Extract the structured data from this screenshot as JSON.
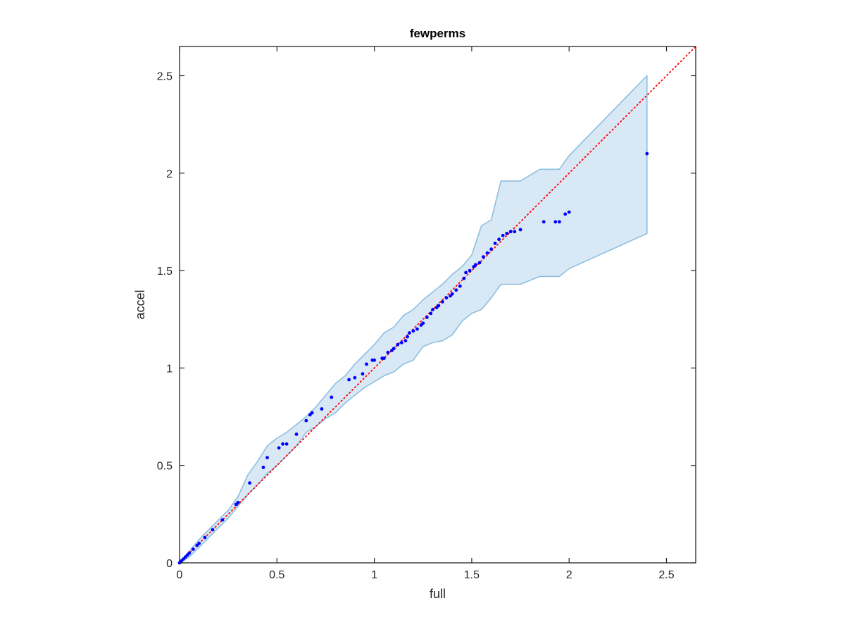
{
  "chart_data": {
    "type": "scatter",
    "title": "fewperms",
    "xlabel": "full",
    "ylabel": "accel",
    "xlim": [
      0,
      2.65
    ],
    "ylim": [
      0,
      2.65
    ],
    "xticks": [
      0,
      0.5,
      1,
      1.5,
      2,
      2.5
    ],
    "yticks": [
      0,
      0.5,
      1,
      1.5,
      2,
      2.5
    ],
    "tick_labels": [
      "0",
      "0.5",
      "1",
      "1.5",
      "2",
      "2.5"
    ],
    "grid": false,
    "colors": {
      "points": "#0000ff",
      "reference_line": "#ff0000",
      "band_fill": "#d9e8f5",
      "band_edge": "#8dbfe0",
      "axes": "#262626"
    },
    "reference_line": {
      "style": "dotted",
      "x": [
        0,
        2.65
      ],
      "y": [
        0,
        2.65
      ]
    },
    "band": {
      "upper": [
        [
          0,
          0
        ],
        [
          0.05,
          0.06
        ],
        [
          0.1,
          0.12
        ],
        [
          0.15,
          0.17
        ],
        [
          0.2,
          0.22
        ],
        [
          0.25,
          0.27
        ],
        [
          0.3,
          0.34
        ],
        [
          0.35,
          0.45
        ],
        [
          0.4,
          0.52
        ],
        [
          0.45,
          0.6
        ],
        [
          0.5,
          0.64
        ],
        [
          0.55,
          0.67
        ],
        [
          0.6,
          0.71
        ],
        [
          0.65,
          0.75
        ],
        [
          0.7,
          0.8
        ],
        [
          0.75,
          0.86
        ],
        [
          0.8,
          0.92
        ],
        [
          0.85,
          0.96
        ],
        [
          0.9,
          1.02
        ],
        [
          0.95,
          1.07
        ],
        [
          1.0,
          1.12
        ],
        [
          1.05,
          1.18
        ],
        [
          1.1,
          1.21
        ],
        [
          1.15,
          1.27
        ],
        [
          1.2,
          1.3
        ],
        [
          1.25,
          1.35
        ],
        [
          1.3,
          1.39
        ],
        [
          1.35,
          1.43
        ],
        [
          1.4,
          1.48
        ],
        [
          1.45,
          1.52
        ],
        [
          1.5,
          1.58
        ],
        [
          1.55,
          1.73
        ],
        [
          1.6,
          1.76
        ],
        [
          1.65,
          1.96
        ],
        [
          1.75,
          1.96
        ],
        [
          1.85,
          2.02
        ],
        [
          1.95,
          2.02
        ],
        [
          2.0,
          2.09
        ],
        [
          2.4,
          2.5
        ]
      ],
      "lower": [
        [
          2.4,
          1.69
        ],
        [
          2.0,
          1.51
        ],
        [
          1.95,
          1.47
        ],
        [
          1.85,
          1.47
        ],
        [
          1.75,
          1.43
        ],
        [
          1.65,
          1.43
        ],
        [
          1.6,
          1.36
        ],
        [
          1.55,
          1.3
        ],
        [
          1.5,
          1.28
        ],
        [
          1.45,
          1.24
        ],
        [
          1.4,
          1.17
        ],
        [
          1.35,
          1.14
        ],
        [
          1.3,
          1.13
        ],
        [
          1.25,
          1.11
        ],
        [
          1.2,
          1.04
        ],
        [
          1.15,
          1.02
        ],
        [
          1.1,
          0.98
        ],
        [
          1.05,
          0.96
        ],
        [
          1.0,
          0.93
        ],
        [
          0.95,
          0.9
        ],
        [
          0.9,
          0.86
        ],
        [
          0.85,
          0.82
        ],
        [
          0.8,
          0.77
        ],
        [
          0.75,
          0.74
        ],
        [
          0.7,
          0.7
        ],
        [
          0.65,
          0.67
        ],
        [
          0.6,
          0.6
        ],
        [
          0.55,
          0.55
        ],
        [
          0.5,
          0.5
        ],
        [
          0.45,
          0.46
        ],
        [
          0.4,
          0.4
        ],
        [
          0.35,
          0.35
        ],
        [
          0.3,
          0.29
        ],
        [
          0.25,
          0.23
        ],
        [
          0.2,
          0.18
        ],
        [
          0.15,
          0.13
        ],
        [
          0.1,
          0.08
        ],
        [
          0.05,
          0.03
        ],
        [
          0,
          0
        ]
      ]
    },
    "points": [
      [
        0.0,
        0.0
      ],
      [
        0.01,
        0.01
      ],
      [
        0.02,
        0.02
      ],
      [
        0.03,
        0.03
      ],
      [
        0.04,
        0.04
      ],
      [
        0.05,
        0.05
      ],
      [
        0.07,
        0.07
      ],
      [
        0.09,
        0.09
      ],
      [
        0.1,
        0.1
      ],
      [
        0.13,
        0.13
      ],
      [
        0.17,
        0.17
      ],
      [
        0.22,
        0.22
      ],
      [
        0.29,
        0.3
      ],
      [
        0.3,
        0.31
      ],
      [
        0.36,
        0.41
      ],
      [
        0.43,
        0.49
      ],
      [
        0.45,
        0.54
      ],
      [
        0.51,
        0.59
      ],
      [
        0.53,
        0.61
      ],
      [
        0.55,
        0.61
      ],
      [
        0.6,
        0.66
      ],
      [
        0.65,
        0.73
      ],
      [
        0.67,
        0.76
      ],
      [
        0.68,
        0.77
      ],
      [
        0.73,
        0.79
      ],
      [
        0.78,
        0.85
      ],
      [
        0.87,
        0.94
      ],
      [
        0.9,
        0.95
      ],
      [
        0.94,
        0.97
      ],
      [
        0.96,
        1.02
      ],
      [
        0.99,
        1.04
      ],
      [
        1.0,
        1.04
      ],
      [
        1.04,
        1.05
      ],
      [
        1.05,
        1.05
      ],
      [
        1.07,
        1.08
      ],
      [
        1.09,
        1.09
      ],
      [
        1.1,
        1.1
      ],
      [
        1.12,
        1.12
      ],
      [
        1.14,
        1.13
      ],
      [
        1.16,
        1.14
      ],
      [
        1.17,
        1.16
      ],
      [
        1.18,
        1.18
      ],
      [
        1.2,
        1.19
      ],
      [
        1.22,
        1.2
      ],
      [
        1.24,
        1.22
      ],
      [
        1.25,
        1.23
      ],
      [
        1.27,
        1.26
      ],
      [
        1.29,
        1.28
      ],
      [
        1.3,
        1.3
      ],
      [
        1.32,
        1.31
      ],
      [
        1.33,
        1.32
      ],
      [
        1.35,
        1.34
      ],
      [
        1.37,
        1.36
      ],
      [
        1.39,
        1.37
      ],
      [
        1.4,
        1.38
      ],
      [
        1.42,
        1.4
      ],
      [
        1.44,
        1.42
      ],
      [
        1.46,
        1.46
      ],
      [
        1.47,
        1.49
      ],
      [
        1.49,
        1.5
      ],
      [
        1.51,
        1.52
      ],
      [
        1.52,
        1.53
      ],
      [
        1.54,
        1.54
      ],
      [
        1.56,
        1.57
      ],
      [
        1.58,
        1.59
      ],
      [
        1.6,
        1.61
      ],
      [
        1.62,
        1.64
      ],
      [
        1.64,
        1.66
      ],
      [
        1.66,
        1.68
      ],
      [
        1.68,
        1.69
      ],
      [
        1.7,
        1.7
      ],
      [
        1.72,
        1.7
      ],
      [
        1.75,
        1.71
      ],
      [
        1.87,
        1.75
      ],
      [
        1.93,
        1.75
      ],
      [
        1.95,
        1.75
      ],
      [
        1.98,
        1.79
      ],
      [
        2.0,
        1.8
      ],
      [
        2.4,
        2.1
      ]
    ]
  }
}
